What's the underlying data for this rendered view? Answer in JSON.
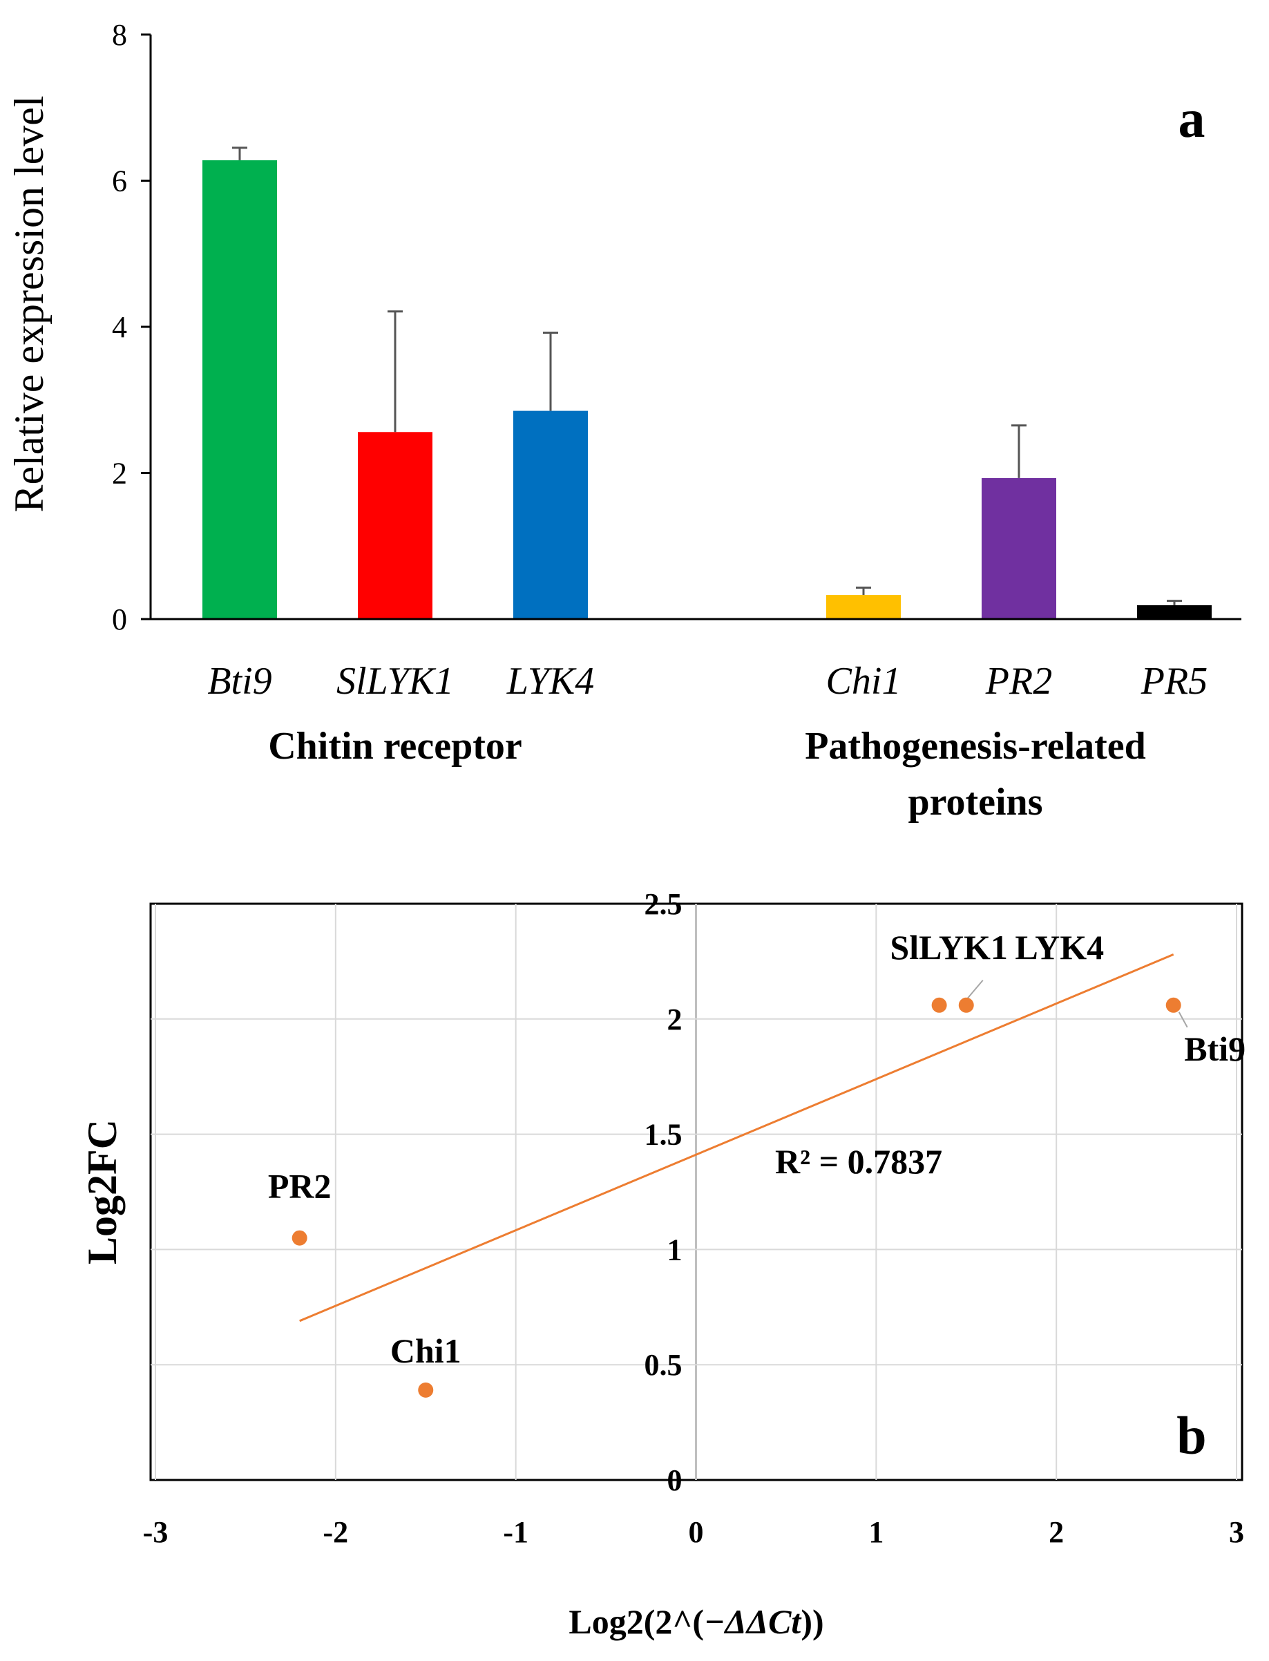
{
  "chart_data": [
    {
      "type": "bar",
      "panel_label": "a",
      "ylabel": "Relative expression level",
      "ylim": [
        0,
        8
      ],
      "yticks": [
        0,
        2,
        4,
        6,
        8
      ],
      "categories": [
        "Bti9",
        "SlLYK1",
        "LYK4",
        "Chi1",
        "PR2",
        "PR5"
      ],
      "values": [
        6.28,
        2.56,
        2.85,
        0.33,
        1.93,
        0.19
      ],
      "errors": [
        0.17,
        1.65,
        1.07,
        0.1,
        0.72,
        0.06
      ],
      "colors": [
        "#00b04f",
        "#ff0000",
        "#0070c0",
        "#ffc000",
        "#7030a0",
        "#000000"
      ],
      "groups": [
        {
          "label_lines": [
            "Chitin receptor"
          ],
          "categories": [
            "Bti9",
            "SlLYK1",
            "LYK4"
          ]
        },
        {
          "label_lines": [
            "Pathogenesis-related",
            "proteins"
          ],
          "categories": [
            "Chi1",
            "PR2",
            "PR5"
          ]
        }
      ]
    },
    {
      "type": "scatter",
      "panel_label": "b",
      "xlabel_prefix": "Log2(2^(",
      "xlabel_italic": "−ΔΔCt",
      "xlabel_suffix": "))",
      "ylabel": "Log2FC",
      "xlim": [
        -3,
        3
      ],
      "ylim": [
        0,
        2.5
      ],
      "xticks": [
        "-3",
        "-2",
        "-1",
        "0",
        "1",
        "2",
        "3"
      ],
      "yticks": [
        "0",
        "0.5",
        "1",
        "1.5",
        "2",
        "2.5"
      ],
      "points": [
        {
          "label": "PR2",
          "x": -2.2,
          "y": 1.05
        },
        {
          "label": "Chi1",
          "x": -1.5,
          "y": 0.39
        },
        {
          "label": "SlLYK1",
          "x": 1.35,
          "y": 2.06
        },
        {
          "label": "LYK4",
          "x": 1.5,
          "y": 2.06
        },
        {
          "label": "Bti9",
          "x": 2.65,
          "y": 2.06
        }
      ],
      "point_color": "#ed7d31",
      "trendline": {
        "x": [
          -2.2,
          2.65
        ],
        "y": [
          0.69,
          2.28
        ],
        "r2_text": "R² = 0.7837"
      }
    }
  ]
}
